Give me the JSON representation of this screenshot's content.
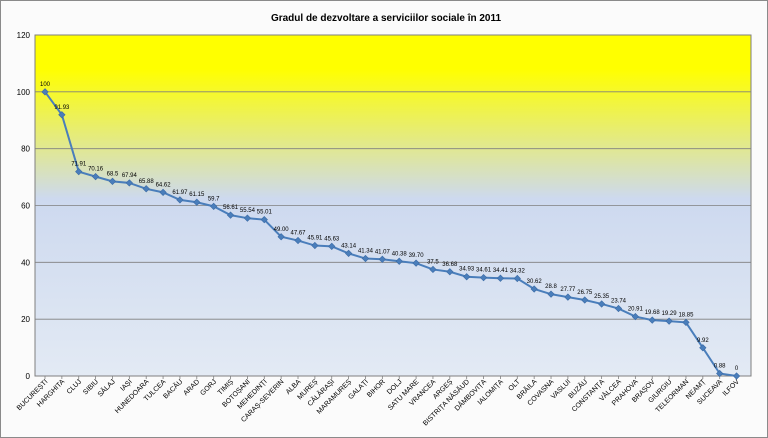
{
  "chart_data": {
    "type": "line",
    "title": "Gradul de dezvoltare a serviciilor sociale în 2011",
    "xlabel": "",
    "ylabel": "",
    "ylim": [
      0,
      120
    ],
    "yticks": [
      "0",
      "20",
      "40",
      "60",
      "80",
      "100",
      "120"
    ],
    "grid": true,
    "legend": "none",
    "background_gradient": [
      "#ffff00",
      "#cdd9ef",
      "#e3eaf4"
    ],
    "line_color": "#4a7ebb",
    "categories": [
      "BUCUREȘTI",
      "HARGHITA",
      "CLUJ",
      "SIBIU",
      "SĂLAJ",
      "IAȘI",
      "HUNEDOARA",
      "TULCEA",
      "BACĂU",
      "ARAD",
      "GORJ",
      "TIMIȘ",
      "BOTOȘANI",
      "MEHEDINȚI",
      "CARAȘ-SEVERIN",
      "ALBA",
      "MUREȘ",
      "CĂLĂRAȘI",
      "MARAMUREȘ",
      "GALAȚI",
      "BIHOR",
      "DOLJ",
      "SATU MARE",
      "VRANCEA",
      "ARGEȘ",
      "BISTRIȚA NĂSĂUD",
      "DÂMBOVIȚA",
      "IALOMIȚA",
      "OLT",
      "BRĂILA",
      "COVASNA",
      "VASLUI",
      "BUZĂU",
      "CONSTANȚA",
      "VÂLCEA",
      "PRAHOVA",
      "BRAȘOV",
      "GIURGIU",
      "TELEORMAN",
      "NEAMȚ",
      "SUCEAVA",
      "ILFOV"
    ],
    "series": [
      {
        "values": [
          100,
          91.93,
          71.91,
          70.16,
          68.5,
          67.94,
          65.88,
          64.62,
          61.97,
          61.15,
          59.7,
          56.61,
          55.54,
          55.01,
          49,
          47.67,
          45.91,
          45.63,
          43.14,
          41.34,
          41.07,
          40.38,
          39.7,
          37.5,
          36.68,
          34.93,
          34.61,
          34.41,
          34.32,
          30.62,
          28.8,
          27.77,
          26.75,
          25.35,
          23.74,
          20.91,
          19.68,
          19.29,
          18.85,
          9.92,
          0.88,
          0
        ],
        "labels": [
          "100",
          "91.93",
          "71.91",
          "70.16",
          "68.5",
          "67.94",
          "65.88",
          "64.62",
          "61.97",
          "61.15",
          "59.7",
          "56.61",
          "55.54",
          "55.01",
          "49.00",
          "47.67",
          "45.91",
          "45.63",
          "43.14",
          "41.34",
          "41.07",
          "40.38",
          "39.70",
          "37.5",
          "36.68",
          "34.93",
          "34.61",
          "34.41",
          "34.32",
          "30.62",
          "28.8",
          "27.77",
          "26.75",
          "25.35",
          "23.74",
          "20.91",
          "19.68",
          "19.29",
          "18.85",
          "9.92",
          "0.88",
          "0"
        ]
      }
    ]
  }
}
